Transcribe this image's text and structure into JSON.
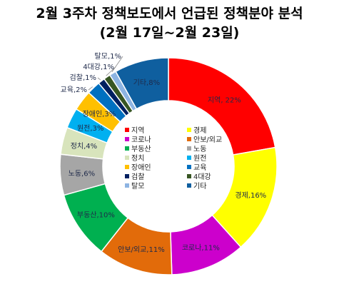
{
  "chart_data": {
    "type": "pie",
    "title": "2월 3주차 정책보도에서 언급된 정책분야 분석",
    "subtitle": "(2월 17일~2월 23일)",
    "legend_position": "center",
    "slices": [
      {
        "name": "지역",
        "label": "지역, 22%",
        "value": 22,
        "color": "#ff0000"
      },
      {
        "name": "경제",
        "label": "경제,16%",
        "value": 16,
        "color": "#ffff00"
      },
      {
        "name": "코로나",
        "label": "코로나,11%",
        "value": 11,
        "color": "#cc00cc"
      },
      {
        "name": "안보/외교",
        "label": "안보/외교,11%",
        "value": 11,
        "color": "#e26b0a"
      },
      {
        "name": "부동산",
        "label": "부동산,10%",
        "value": 10,
        "color": "#00b050"
      },
      {
        "name": "노동",
        "label": "노동,6%",
        "value": 6,
        "color": "#a6a6a6"
      },
      {
        "name": "정치",
        "label": "정치,4%",
        "value": 4,
        "color": "#d8e4bc"
      },
      {
        "name": "원전",
        "label": "원전,3%",
        "value": 3,
        "color": "#00b0f0"
      },
      {
        "name": "장애인",
        "label": "장애인,3%",
        "value": 3,
        "color": "#ffc000"
      },
      {
        "name": "교육",
        "label": "교육,2%",
        "value": 2,
        "color": "#0070c0"
      },
      {
        "name": "검찰",
        "label": "검찰,1%",
        "value": 1,
        "color": "#002060"
      },
      {
        "name": "4대강",
        "label": "4대강,1%",
        "value": 1,
        "color": "#375623"
      },
      {
        "name": "탈모",
        "label": "탈모,1%",
        "value": 1,
        "color": "#8db4e2"
      },
      {
        "name": "기타",
        "label": "기타,8%",
        "value": 8,
        "color": "#0f5f9f"
      }
    ]
  }
}
